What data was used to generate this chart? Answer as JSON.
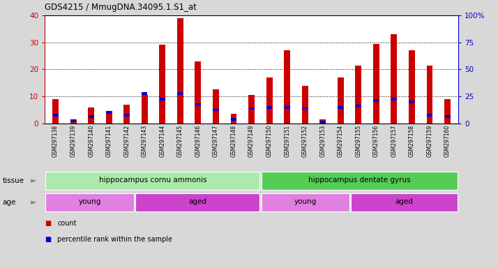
{
  "title": "GDS4215 / MmugDNA.34095.1.S1_at",
  "samples": [
    "GSM297138",
    "GSM297139",
    "GSM297140",
    "GSM297141",
    "GSM297142",
    "GSM297143",
    "GSM297144",
    "GSM297145",
    "GSM297146",
    "GSM297147",
    "GSM297148",
    "GSM297149",
    "GSM297150",
    "GSM297151",
    "GSM297152",
    "GSM297153",
    "GSM297154",
    "GSM297155",
    "GSM297156",
    "GSM297157",
    "GSM297158",
    "GSM297159",
    "GSM297160"
  ],
  "count_values": [
    9,
    1.5,
    6,
    4.5,
    7,
    10.5,
    29,
    39,
    23,
    12.5,
    3.5,
    10.5,
    17,
    27,
    14,
    1.5,
    17,
    21.5,
    29.5,
    33,
    27,
    21.5,
    9
  ],
  "percentile_values": [
    3,
    1,
    2.5,
    4,
    3,
    11,
    9,
    11,
    7,
    5,
    1.5,
    5.5,
    6,
    6,
    5.5,
    0.5,
    6,
    6.5,
    8.5,
    9,
    8,
    3,
    2.5
  ],
  "bar_color": "#cc0000",
  "percentile_color": "#0000cc",
  "ylim": [
    0,
    40
  ],
  "y2lim": [
    0,
    100
  ],
  "yticks": [
    0,
    10,
    20,
    30,
    40
  ],
  "y2ticks": [
    0,
    25,
    50,
    75,
    100
  ],
  "y2tick_labels": [
    "0",
    "25",
    "50",
    "75",
    "100%"
  ],
  "tissue_groups": [
    {
      "label": "hippocampus cornu ammonis",
      "start": 0,
      "end": 12,
      "color": "#aaeaaa"
    },
    {
      "label": "hippocampus dentate gyrus",
      "start": 12,
      "end": 23,
      "color": "#55cc55"
    }
  ],
  "age_groups": [
    {
      "label": "young",
      "start": 0,
      "end": 5,
      "color": "#e080e0"
    },
    {
      "label": "aged",
      "start": 5,
      "end": 12,
      "color": "#cc44cc"
    },
    {
      "label": "young",
      "start": 12,
      "end": 17,
      "color": "#e080e0"
    },
    {
      "label": "aged",
      "start": 17,
      "end": 23,
      "color": "#cc44cc"
    }
  ],
  "tissue_label": "tissue",
  "age_label": "age",
  "legend_count": "count",
  "legend_percentile": "percentile rank within the sample",
  "bg_color": "#d8d8d8",
  "bar_width": 0.35,
  "pct_bar_height": 1.0,
  "xtick_bg": "#c8c8c8"
}
